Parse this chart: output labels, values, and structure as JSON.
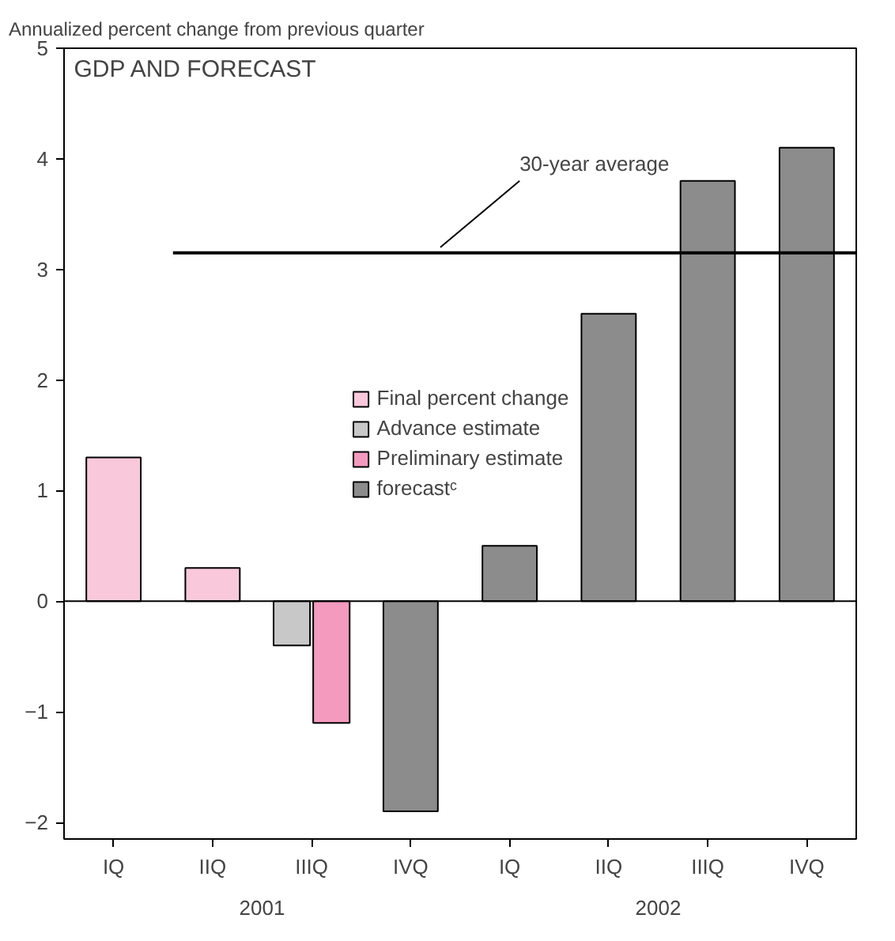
{
  "chart_data": {
    "type": "bar",
    "title": "GDP AND FORECAST",
    "ylabel": "Annualized percent change from previous quarter",
    "categories": [
      "IQ",
      "IIQ",
      "IIIQ",
      "IVQ",
      "IQ",
      "IIQ",
      "IIIQ",
      "IVQ"
    ],
    "series": [
      {
        "name": "Final percent change",
        "color": "#f9c8da",
        "values": [
          1.3,
          0.3,
          null,
          null,
          null,
          null,
          null,
          null
        ]
      },
      {
        "name": "Advance estimate",
        "color": "#c8c8c8",
        "values": [
          null,
          null,
          -0.4,
          null,
          null,
          null,
          null,
          null
        ]
      },
      {
        "name": "Preliminary estimate",
        "color": "#f49abf",
        "values": [
          null,
          null,
          -1.1,
          null,
          null,
          null,
          null,
          null
        ]
      },
      {
        "name": "forecastᶜ",
        "color": "#8c8c8c",
        "values": [
          null,
          null,
          null,
          -1.9,
          0.5,
          2.6,
          3.8,
          4.1
        ]
      }
    ],
    "ylim": [
      -2.15,
      5
    ],
    "yticks": [
      {
        "value": -2,
        "label": "−2"
      },
      {
        "value": -1,
        "label": "−1"
      },
      0,
      1,
      2,
      3,
      4,
      5
    ],
    "ref_lines": [
      {
        "axis": "y",
        "value": 3.15,
        "label": "30-year average",
        "color": "#000000"
      }
    ],
    "annotations": [
      "2001",
      "2002"
    ],
    "legend": "center"
  }
}
